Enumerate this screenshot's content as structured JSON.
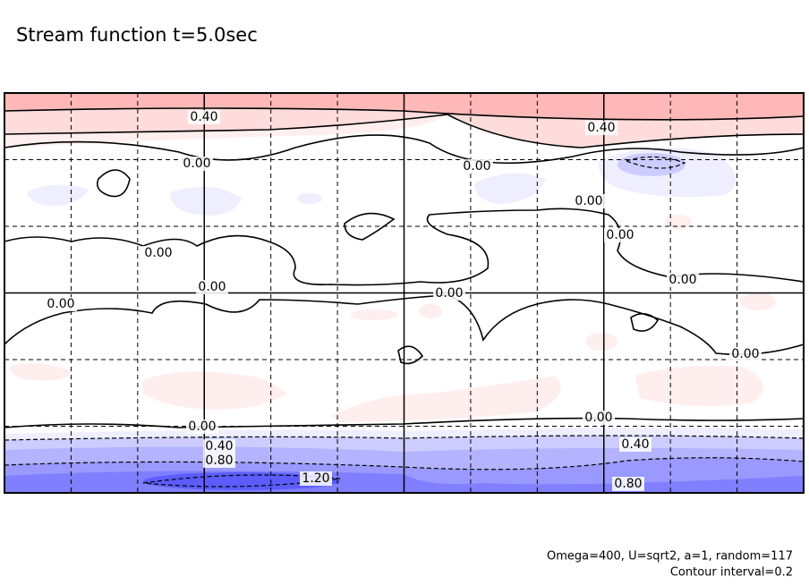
{
  "chart_data": {
    "type": "contour",
    "title": "Stream function t=5.0sec",
    "contour_labels": [
      "0.40",
      "0.40",
      "0.00",
      "0.00",
      "0.00",
      "0.00",
      "0.00",
      "0.00",
      "0.00",
      "0.00",
      "0.00",
      "0.00",
      "0.00",
      "0.00",
      "0.40",
      "0.40",
      "0.80",
      "1.20",
      "0.80"
    ],
    "annotations": [
      "Omega=400, U=sqrt2, a=1, random=117",
      "Contour interval=0.2"
    ]
  }
}
